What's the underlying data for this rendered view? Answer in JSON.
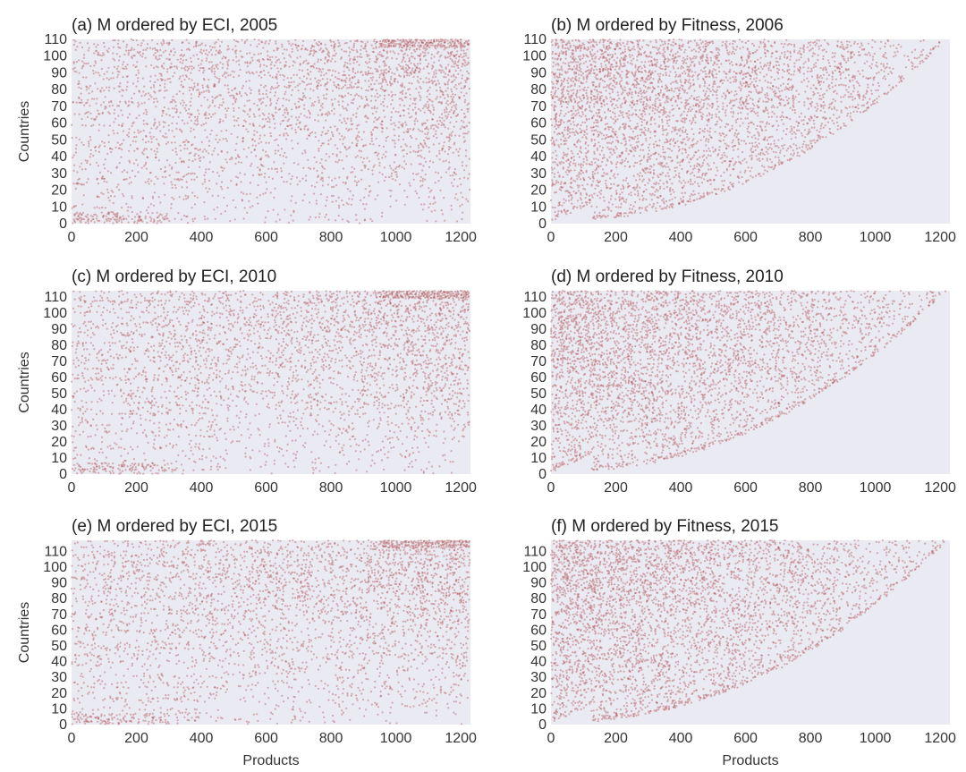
{
  "figure": {
    "ylabel": "Countries",
    "xlabel": "Products",
    "point_color": "#9b1c1c",
    "background_color": "#eaeaf2"
  },
  "chart_data": [
    {
      "id": "a",
      "type": "scatter",
      "title": "(a) M ordered by ECI, 2005",
      "ylabel": "Countries",
      "xlabel": "",
      "xlim": [
        0,
        1230
      ],
      "ylim": [
        0,
        110
      ],
      "xticks": [
        0,
        200,
        400,
        600,
        800,
        1000,
        1200
      ],
      "yticks": [
        0,
        10,
        20,
        30,
        40,
        50,
        60,
        70,
        80,
        90,
        100,
        110
      ],
      "ordering": "ECI",
      "n_countries": 110,
      "grid": false
    },
    {
      "id": "b",
      "type": "scatter",
      "title": "(b) M ordered by Fitness, 2006",
      "ylabel": "",
      "xlabel": "",
      "xlim": [
        0,
        1230
      ],
      "ylim": [
        0,
        110
      ],
      "xticks": [
        0,
        200,
        400,
        600,
        800,
        1000,
        1200
      ],
      "yticks": [
        0,
        10,
        20,
        30,
        40,
        50,
        60,
        70,
        80,
        90,
        100,
        110
      ],
      "ordering": "Fitness",
      "n_countries": 110,
      "grid": false
    },
    {
      "id": "c",
      "type": "scatter",
      "title": "(c) M ordered by ECI, 2010",
      "ylabel": "Countries",
      "xlabel": "",
      "xlim": [
        0,
        1230
      ],
      "ylim": [
        0,
        114
      ],
      "xticks": [
        0,
        200,
        400,
        600,
        800,
        1000,
        1200
      ],
      "yticks": [
        0,
        10,
        20,
        30,
        40,
        50,
        60,
        70,
        80,
        90,
        100,
        110
      ],
      "ordering": "ECI",
      "n_countries": 114,
      "grid": false
    },
    {
      "id": "d",
      "type": "scatter",
      "title": "(d) M ordered by Fitness, 2010",
      "ylabel": "",
      "xlabel": "",
      "xlim": [
        0,
        1230
      ],
      "ylim": [
        0,
        114
      ],
      "xticks": [
        0,
        200,
        400,
        600,
        800,
        1000,
        1200
      ],
      "yticks": [
        0,
        10,
        20,
        30,
        40,
        50,
        60,
        70,
        80,
        90,
        100,
        110
      ],
      "ordering": "Fitness",
      "n_countries": 114,
      "grid": false
    },
    {
      "id": "e",
      "type": "scatter",
      "title": "(e) M ordered by ECI, 2015",
      "ylabel": "Countries",
      "xlabel": "Products",
      "xlim": [
        0,
        1230
      ],
      "ylim": [
        0,
        117
      ],
      "xticks": [
        0,
        200,
        400,
        600,
        800,
        1000,
        1200
      ],
      "yticks": [
        0,
        10,
        20,
        30,
        40,
        50,
        60,
        70,
        80,
        90,
        100,
        110
      ],
      "ordering": "ECI",
      "n_countries": 117,
      "grid": false
    },
    {
      "id": "f",
      "type": "scatter",
      "title": "(f) M ordered by Fitness, 2015",
      "ylabel": "",
      "xlabel": "Products",
      "xlim": [
        0,
        1230
      ],
      "ylim": [
        0,
        117
      ],
      "xticks": [
        0,
        200,
        400,
        600,
        800,
        1000,
        1200
      ],
      "yticks": [
        0,
        10,
        20,
        30,
        40,
        50,
        60,
        70,
        80,
        90,
        100,
        110
      ],
      "ordering": "Fitness",
      "n_countries": 117,
      "grid": false
    }
  ]
}
